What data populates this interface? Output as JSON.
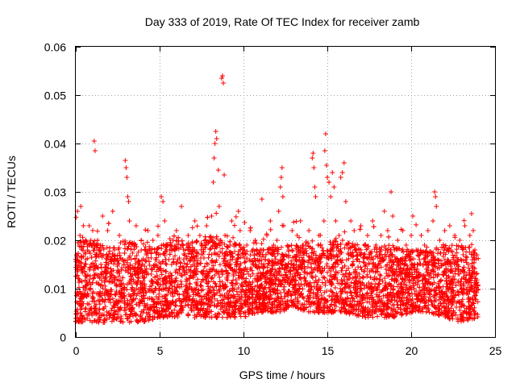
{
  "chart_data": {
    "type": "scatter",
    "title": "Day 333 of 2019, Rate Of TEC Index for receiver zamb",
    "xlabel": "GPS time / hours",
    "ylabel": "ROTI / TECUs",
    "xlim": [
      0,
      25
    ],
    "ylim": [
      0,
      0.06
    ],
    "xticks": [
      0,
      5,
      10,
      15,
      20,
      25
    ],
    "xtick_labels": [
      "0",
      "5",
      "10",
      "15",
      "20",
      "25"
    ],
    "yticks": [
      0,
      0.01,
      0.02,
      0.03,
      0.04,
      0.05,
      0.06
    ],
    "ytick_labels": [
      "0",
      "0.01",
      "0.02",
      "0.03",
      "0.04",
      "0.05",
      "0.06"
    ],
    "grid": true,
    "marker": "+",
    "color": "#ff0000",
    "series": [
      {
        "name": "ROTI",
        "points": [
          [
            0.05,
            0.017
          ],
          [
            0.1,
            0.026
          ],
          [
            0.15,
            0.009
          ],
          [
            0.2,
            0.012
          ],
          [
            0.25,
            0.021
          ],
          [
            0.3,
            0.027
          ],
          [
            0.35,
            0.006
          ],
          [
            0.4,
            0.014
          ],
          [
            0.45,
            0.023
          ],
          [
            0.5,
            0.004
          ],
          [
            0.55,
            0.01
          ],
          [
            0.6,
            0.015
          ],
          [
            0.7,
            0.011
          ],
          [
            0.8,
            0.023
          ],
          [
            0.9,
            0.02
          ],
          [
            1.0,
            0.008
          ],
          [
            1.1,
            0.0405
          ],
          [
            1.15,
            0.0385
          ],
          [
            1.2,
            0.013
          ],
          [
            1.3,
            0.02
          ],
          [
            1.4,
            0.005
          ],
          [
            1.5,
            0.017
          ],
          [
            1.6,
            0.025
          ],
          [
            1.7,
            0.009
          ],
          [
            1.8,
            0.014
          ],
          [
            1.9,
            0.022
          ],
          [
            2.0,
            0.004
          ],
          [
            2.1,
            0.012
          ],
          [
            2.2,
            0.026
          ],
          [
            2.3,
            0.018
          ],
          [
            2.4,
            0.007
          ],
          [
            2.5,
            0.015
          ],
          [
            2.6,
            0.021
          ],
          [
            2.7,
            0.011
          ],
          [
            2.8,
            0.016
          ],
          [
            2.95,
            0.0365
          ],
          [
            3.0,
            0.035
          ],
          [
            3.05,
            0.033
          ],
          [
            3.1,
            0.029
          ],
          [
            3.15,
            0.028
          ],
          [
            3.2,
            0.024
          ],
          [
            3.3,
            0.012
          ],
          [
            3.4,
            0.006
          ],
          [
            3.5,
            0.019
          ],
          [
            3.6,
            0.023
          ],
          [
            3.7,
            0.009
          ],
          [
            3.8,
            0.014
          ],
          [
            3.9,
            0.02
          ],
          [
            4.0,
            0.005
          ],
          [
            4.1,
            0.011
          ],
          [
            4.2,
            0.017
          ],
          [
            4.3,
            0.022
          ],
          [
            4.4,
            0.008
          ],
          [
            4.5,
            0.013
          ],
          [
            4.6,
            0.02
          ],
          [
            4.7,
            0.004
          ],
          [
            4.8,
            0.016
          ],
          [
            4.9,
            0.021
          ],
          [
            5.0,
            0.01
          ],
          [
            5.1,
            0.029
          ],
          [
            5.2,
            0.028
          ],
          [
            5.3,
            0.024
          ],
          [
            5.4,
            0.015
          ],
          [
            5.5,
            0.007
          ],
          [
            5.6,
            0.018
          ],
          [
            5.7,
            0.012
          ],
          [
            5.8,
            0.02
          ],
          [
            5.9,
            0.009
          ],
          [
            6.0,
            0.022
          ],
          [
            6.1,
            0.005
          ],
          [
            6.2,
            0.014
          ],
          [
            6.3,
            0.027
          ],
          [
            6.4,
            0.019
          ],
          [
            6.5,
            0.008
          ],
          [
            6.6,
            0.012
          ],
          [
            6.7,
            0.021
          ],
          [
            6.8,
            0.016
          ],
          [
            6.9,
            0.006
          ],
          [
            7.0,
            0.018
          ],
          [
            7.1,
            0.024
          ],
          [
            7.2,
            0.011
          ],
          [
            7.3,
            0.015
          ],
          [
            7.4,
            0.021
          ],
          [
            7.5,
            0.007
          ],
          [
            7.6,
            0.013
          ],
          [
            7.7,
            0.019
          ],
          [
            7.8,
            0.023
          ],
          [
            7.9,
            0.009
          ],
          [
            8.0,
            0.014
          ],
          [
            8.1,
            0.025
          ],
          [
            8.2,
            0.032
          ],
          [
            8.25,
            0.037
          ],
          [
            8.3,
            0.04
          ],
          [
            8.35,
            0.0425
          ],
          [
            8.4,
            0.041
          ],
          [
            8.5,
            0.0345
          ],
          [
            8.55,
            0.027
          ],
          [
            8.7,
            0.0535
          ],
          [
            8.75,
            0.054
          ],
          [
            8.8,
            0.0525
          ],
          [
            8.85,
            0.0335
          ],
          [
            8.9,
            0.021
          ],
          [
            9.0,
            0.012
          ],
          [
            9.1,
            0.005
          ],
          [
            9.2,
            0.019
          ],
          [
            9.3,
            0.024
          ],
          [
            9.4,
            0.013
          ],
          [
            9.5,
            0.008
          ],
          [
            9.6,
            0.016
          ],
          [
            9.7,
            0.026
          ],
          [
            9.8,
            0.022
          ],
          [
            9.9,
            0.011
          ],
          [
            10.0,
            0.017
          ],
          [
            10.1,
            0.007
          ],
          [
            10.2,
            0.019
          ],
          [
            10.3,
            0.013
          ],
          [
            10.4,
            0.022
          ],
          [
            10.5,
            0.009
          ],
          [
            10.6,
            0.015
          ],
          [
            10.7,
            0.02
          ],
          [
            10.8,
            0.006
          ],
          [
            10.9,
            0.012
          ],
          [
            11.0,
            0.018
          ],
          [
            11.1,
            0.0285
          ],
          [
            11.2,
            0.01
          ],
          [
            11.3,
            0.016
          ],
          [
            11.4,
            0.021
          ],
          [
            11.5,
            0.008
          ],
          [
            11.6,
            0.024
          ],
          [
            11.7,
            0.014
          ],
          [
            11.8,
            0.019
          ],
          [
            11.9,
            0.011
          ],
          [
            12.0,
            0.02
          ],
          [
            12.1,
            0.026
          ],
          [
            12.2,
            0.031
          ],
          [
            12.25,
            0.033
          ],
          [
            12.3,
            0.035
          ],
          [
            12.35,
            0.029
          ],
          [
            12.4,
            0.023
          ],
          [
            12.5,
            0.015
          ],
          [
            12.6,
            0.009
          ],
          [
            12.7,
            0.018
          ],
          [
            12.8,
            0.013
          ],
          [
            12.9,
            0.022
          ],
          [
            13.0,
            0.007
          ],
          [
            13.1,
            0.016
          ],
          [
            13.2,
            0.021
          ],
          [
            13.3,
            0.011
          ],
          [
            13.4,
            0.024
          ],
          [
            13.5,
            0.015
          ],
          [
            13.6,
            0.008
          ],
          [
            13.7,
            0.019
          ],
          [
            13.8,
            0.013
          ],
          [
            13.9,
            0.022
          ],
          [
            14.0,
            0.009
          ],
          [
            14.1,
            0.037
          ],
          [
            14.15,
            0.038
          ],
          [
            14.2,
            0.035
          ],
          [
            14.25,
            0.031
          ],
          [
            14.3,
            0.029
          ],
          [
            14.4,
            0.014
          ],
          [
            14.5,
            0.021
          ],
          [
            14.6,
            0.007
          ],
          [
            14.7,
            0.017
          ],
          [
            14.8,
            0.024
          ],
          [
            14.85,
            0.0385
          ],
          [
            14.9,
            0.042
          ],
          [
            14.95,
            0.0355
          ],
          [
            15.0,
            0.033
          ],
          [
            15.1,
            0.032
          ],
          [
            15.2,
            0.029
          ],
          [
            15.3,
            0.034
          ],
          [
            15.4,
            0.031
          ],
          [
            15.5,
            0.024
          ],
          [
            15.6,
            0.016
          ],
          [
            15.7,
            0.021
          ],
          [
            15.8,
            0.033
          ],
          [
            15.9,
            0.034
          ],
          [
            16.0,
            0.036
          ],
          [
            16.1,
            0.028
          ],
          [
            16.2,
            0.019
          ],
          [
            16.3,
            0.012
          ],
          [
            16.4,
            0.024
          ],
          [
            16.5,
            0.015
          ],
          [
            16.6,
            0.022
          ],
          [
            16.7,
            0.009
          ],
          [
            16.8,
            0.017
          ],
          [
            16.9,
            0.013
          ],
          [
            17.0,
            0.023
          ],
          [
            17.1,
            0.011
          ],
          [
            17.2,
            0.019
          ],
          [
            17.3,
            0.015
          ],
          [
            17.4,
            0.021
          ],
          [
            17.5,
            0.008
          ],
          [
            17.6,
            0.016
          ],
          [
            17.7,
            0.024
          ],
          [
            17.8,
            0.012
          ],
          [
            17.9,
            0.019
          ],
          [
            18.0,
            0.01
          ],
          [
            18.1,
            0.017
          ],
          [
            18.2,
            0.021
          ],
          [
            18.3,
            0.007
          ],
          [
            18.4,
            0.026
          ],
          [
            18.5,
            0.014
          ],
          [
            18.6,
            0.022
          ],
          [
            18.7,
            0.011
          ],
          [
            18.8,
            0.03
          ],
          [
            18.9,
            0.025
          ],
          [
            19.0,
            0.018
          ],
          [
            19.1,
            0.012
          ],
          [
            19.2,
            0.02
          ],
          [
            19.3,
            0.008
          ],
          [
            19.4,
            0.016
          ],
          [
            19.5,
            0.022
          ],
          [
            19.6,
            0.013
          ],
          [
            19.7,
            0.019
          ],
          [
            19.8,
            0.009
          ],
          [
            19.9,
            0.017
          ],
          [
            20.0,
            0.021
          ],
          [
            20.1,
            0.025
          ],
          [
            20.2,
            0.012
          ],
          [
            20.3,
            0.018
          ],
          [
            20.4,
            0.008
          ],
          [
            20.5,
            0.016
          ],
          [
            20.6,
            0.021
          ],
          [
            20.7,
            0.011
          ],
          [
            20.8,
            0.019
          ],
          [
            20.9,
            0.014
          ],
          [
            21.0,
            0.022
          ],
          [
            21.1,
            0.009
          ],
          [
            21.2,
            0.016
          ],
          [
            21.3,
            0.024
          ],
          [
            21.4,
            0.03
          ],
          [
            21.45,
            0.029
          ],
          [
            21.5,
            0.027
          ],
          [
            21.6,
            0.013
          ],
          [
            21.7,
            0.02
          ],
          [
            21.8,
            0.008
          ],
          [
            21.9,
            0.015
          ],
          [
            22.0,
            0.022
          ],
          [
            22.1,
            0.011
          ],
          [
            22.2,
            0.018
          ],
          [
            22.3,
            0.023
          ],
          [
            22.4,
            0.01
          ],
          [
            22.5,
            0.016
          ],
          [
            22.6,
            0.021
          ],
          [
            22.7,
            0.007
          ],
          [
            22.8,
            0.014
          ],
          [
            22.9,
            0.02
          ],
          [
            23.0,
            0.012
          ],
          [
            23.1,
            0.017
          ],
          [
            23.2,
            0.023
          ],
          [
            23.3,
            0.009
          ],
          [
            23.4,
            0.015
          ],
          [
            23.5,
            0.021
          ],
          [
            23.6,
            0.0255
          ],
          [
            23.7,
            0.022
          ],
          [
            23.8,
            0.018
          ],
          [
            23.9,
            0.013
          ]
        ]
      }
    ],
    "band": {
      "description": "dense noise floor of the scatter (ROTI envelope vs time)",
      "x": [
        0,
        1,
        2,
        3,
        4,
        5,
        6,
        7,
        8,
        9,
        10,
        11,
        12,
        13,
        14,
        15,
        16,
        17,
        18,
        19,
        20,
        21,
        22,
        23,
        24
      ],
      "low": [
        0.003,
        0.003,
        0.003,
        0.003,
        0.003,
        0.004,
        0.004,
        0.004,
        0.004,
        0.004,
        0.004,
        0.005,
        0.005,
        0.006,
        0.005,
        0.005,
        0.005,
        0.004,
        0.004,
        0.004,
        0.005,
        0.005,
        0.004,
        0.003,
        0.004
      ],
      "high": [
        0.02,
        0.02,
        0.019,
        0.02,
        0.019,
        0.019,
        0.02,
        0.02,
        0.021,
        0.02,
        0.019,
        0.018,
        0.019,
        0.019,
        0.02,
        0.02,
        0.02,
        0.019,
        0.019,
        0.019,
        0.018,
        0.018,
        0.019,
        0.019,
        0.018
      ]
    }
  }
}
